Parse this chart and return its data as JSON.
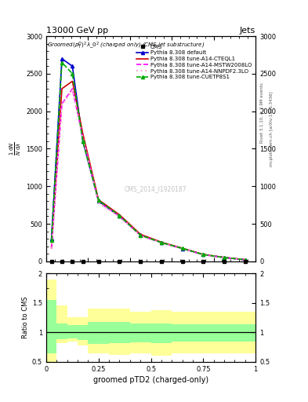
{
  "title_top": "13000 GeV pp",
  "title_right": "Jets",
  "xlabel": "groomed pTD2 (charged-only)",
  "ylabel_main": "1 / mathrm{N}  mathrm{d}N / mathrm{d}lambda",
  "ylabel_ratio": "Ratio to CMS",
  "watermark": "CMS_2014_I1920187",
  "right_label1": "Rivet 3.1.10, ≥ 2.9M events",
  "right_label2": "mcplots.cern.ch [arXiv:1306.3436]",
  "x_bins": [
    0.0,
    0.05,
    0.1,
    0.15,
    0.2,
    0.3,
    0.4,
    0.5,
    0.6,
    0.7,
    0.8,
    0.9,
    1.0
  ],
  "default_y": [
    300,
    2700,
    2600,
    1600,
    800,
    600,
    350,
    250,
    170,
    90,
    50,
    20
  ],
  "cteql1_y": [
    180,
    2300,
    2400,
    1700,
    820,
    620,
    360,
    255,
    175,
    92,
    52,
    22
  ],
  "mstw_y": [
    170,
    2100,
    2300,
    1650,
    790,
    600,
    345,
    248,
    170,
    88,
    50,
    20
  ],
  "nnpdf_y": [
    170,
    2080,
    2280,
    1640,
    780,
    595,
    342,
    245,
    168,
    87,
    49,
    19
  ],
  "cuetp_y": [
    280,
    2650,
    2500,
    1600,
    810,
    610,
    348,
    250,
    172,
    90,
    51,
    21
  ],
  "ratio_yellow_lo": [
    0.4,
    0.82,
    0.85,
    0.78,
    0.65,
    0.62,
    0.65,
    0.6,
    0.65,
    0.65,
    0.65,
    0.65
  ],
  "ratio_yellow_hi": [
    1.9,
    1.45,
    1.25,
    1.25,
    1.4,
    1.4,
    1.35,
    1.38,
    1.35,
    1.35,
    1.35,
    1.35
  ],
  "ratio_green_lo": [
    0.65,
    0.88,
    0.9,
    0.87,
    0.8,
    0.82,
    0.83,
    0.82,
    0.84,
    0.84,
    0.84,
    0.84
  ],
  "ratio_green_hi": [
    1.55,
    1.15,
    1.12,
    1.12,
    1.18,
    1.18,
    1.15,
    1.15,
    1.14,
    1.14,
    1.14,
    1.14
  ],
  "color_default": "#0000cc",
  "color_cteql1": "#cc0000",
  "color_mstw": "#ff00ff",
  "color_nnpdf": "#ffaacc",
  "color_cuetp": "#00aa00",
  "color_yellow": "#ffff99",
  "color_green": "#99ff99",
  "ylim_main": [
    0,
    3000
  ],
  "ylim_ratio": [
    0.5,
    2.0
  ],
  "xlim": [
    0.0,
    1.0
  ],
  "legend_entries": [
    "CMS",
    "Pythia 8.308 default",
    "Pythia 8.308 tune-A14-CTEQL1",
    "Pythia 8.308 tune-A14-MSTW2008LO",
    "Pythia 8.308 tune-A14-NNPDF2.3LO",
    "Pythia 8.308 tune-CUETP8S1"
  ],
  "main_yticks": [
    0,
    500,
    1000,
    1500,
    2000,
    2500,
    3000
  ],
  "ratio_yticks": [
    0.5,
    1.0,
    1.5,
    2.0
  ],
  "ratio_yticklabels": [
    "0.5",
    "1",
    "1.5",
    "2"
  ]
}
